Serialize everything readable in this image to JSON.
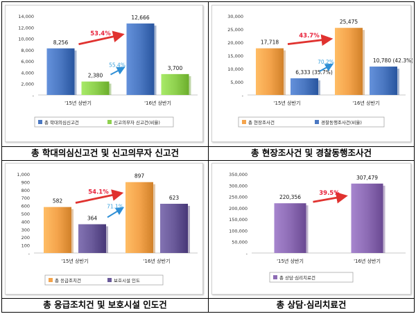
{
  "chart_data": [
    {
      "type": "bar",
      "caption": "총 학대의심신고건 및 신고의무자 신고건",
      "categories": [
        "'15년 상반기",
        "'16년 상반기"
      ],
      "series": [
        {
          "name": "총 학대의심신고건",
          "values": [
            8256,
            12666
          ],
          "labels": [
            "8,256",
            "12,666"
          ],
          "color": "#4b78c2"
        },
        {
          "name": "신고의무자 신고건(비율)",
          "values": [
            2380,
            3700
          ],
          "labels": [
            "2,380",
            "3,700"
          ],
          "color": "#8fd14f"
        }
      ],
      "yticks": [
        "14,000",
        "12,000",
        "10,000",
        "8,000",
        "6,000",
        "4,000",
        "2,000",
        "-"
      ],
      "ylim": [
        0,
        14000
      ],
      "annotations": [
        {
          "text": "53.4%",
          "color": "#e8213a",
          "from_series": 0
        },
        {
          "text": "55.4%",
          "color": "#3aa0dc",
          "from_series": 1
        }
      ]
    },
    {
      "type": "bar",
      "caption": "총 현장조사건 및 경찰동행조사건",
      "categories": [
        "'15년 상반기",
        "'16년 상반기"
      ],
      "series": [
        {
          "name": "총 현장조사건",
          "values": [
            17718,
            25475
          ],
          "labels": [
            "17,718",
            "25,475"
          ],
          "color": "#f4a44c"
        },
        {
          "name": "경찰동행조사건(비율)",
          "values": [
            6333,
            10780
          ],
          "labels": [
            "6,333 (35.7%)",
            "10,780 (42.3%)"
          ],
          "color": "#4b78c2"
        }
      ],
      "yticks": [
        "30,000",
        "25,000",
        "20,000",
        "15,000",
        "10,000",
        "5,000",
        "-"
      ],
      "ylim": [
        0,
        30000
      ],
      "annotations": [
        {
          "text": "43.7%",
          "color": "#e8213a",
          "from_series": 0
        },
        {
          "text": "70.2%",
          "color": "#3aa0dc",
          "from_series": 1
        }
      ]
    },
    {
      "type": "bar",
      "caption": "총 응급조치건 및 보호시설 인도건",
      "categories": [
        "'15년 상반기",
        "'16년 상반기"
      ],
      "series": [
        {
          "name": "총 응급조치건",
          "values": [
            582,
            897
          ],
          "labels": [
            "582",
            "897"
          ],
          "color": "#f4a44c"
        },
        {
          "name": "보호시설 인도",
          "values": [
            364,
            623
          ],
          "labels": [
            "364",
            "623"
          ],
          "color": "#6a5a9a"
        }
      ],
      "yticks": [
        "1,000",
        "900",
        "800",
        "700",
        "600",
        "500",
        "400",
        "300",
        "200",
        "100",
        "-"
      ],
      "ylim": [
        0,
        1000
      ],
      "annotations": [
        {
          "text": "54.1%",
          "color": "#e8213a",
          "from_series": 0
        },
        {
          "text": "71.1%",
          "color": "#3aa0dc",
          "from_series": 1
        }
      ]
    },
    {
      "type": "bar",
      "caption": "총 상담·심리치료건",
      "categories": [
        "'15년 상반기",
        "'16년 상반기"
      ],
      "series": [
        {
          "name": "총 상담·심리치료건",
          "values": [
            220356,
            307479
          ],
          "labels": [
            "220,356",
            "307,479"
          ],
          "color": "#8d6cb5"
        }
      ],
      "yticks": [
        "350,000",
        "300,000",
        "250,000",
        "200,000",
        "150,000",
        "100,000",
        "50,000",
        "-"
      ],
      "ylim": [
        0,
        350000
      ],
      "annotations": [
        {
          "text": "39.5%",
          "color": "#e8213a",
          "from_series": 0
        }
      ]
    }
  ]
}
